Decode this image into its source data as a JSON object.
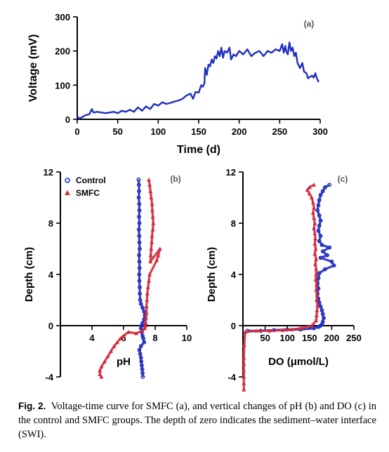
{
  "chart_data": [
    {
      "id": "a",
      "type": "line",
      "panel_label": "(a)",
      "xlabel": "Time (d)",
      "ylabel": "Voltage (mV)",
      "xlim": [
        0,
        300
      ],
      "ylim": [
        0,
        300
      ],
      "xticks": [
        0,
        50,
        100,
        150,
        200,
        250,
        300
      ],
      "yticks": [
        0,
        100,
        200,
        300
      ],
      "color": "#1f2fbf",
      "series": [
        {
          "x": [
            0,
            2,
            5,
            10,
            15,
            18,
            20,
            25,
            30,
            35,
            40,
            45,
            50,
            55,
            60,
            65,
            70,
            75,
            80,
            85,
            90,
            95,
            100,
            105,
            110,
            115,
            120,
            125,
            130,
            135,
            140,
            143,
            146,
            150,
            153,
            155,
            157,
            158,
            160,
            162,
            164,
            166,
            168,
            170,
            172,
            174,
            176,
            178,
            180,
            182,
            185,
            188,
            190,
            193,
            196,
            200,
            205,
            210,
            215,
            220,
            225,
            230,
            235,
            240,
            245,
            250,
            253,
            255,
            257,
            258,
            260,
            262,
            264,
            266,
            268,
            270,
            272,
            275,
            278,
            280,
            283,
            285,
            288,
            290,
            292,
            294,
            296,
            298
          ],
          "y": [
            10,
            2,
            5,
            12,
            15,
            30,
            20,
            22,
            20,
            18,
            20,
            22,
            18,
            25,
            22,
            28,
            22,
            35,
            25,
            38,
            30,
            45,
            40,
            50,
            45,
            48,
            52,
            55,
            60,
            70,
            75,
            60,
            80,
            78,
            100,
            95,
            105,
            150,
            130,
            160,
            155,
            175,
            165,
            185,
            178,
            200,
            185,
            210,
            180,
            200,
            195,
            210,
            175,
            190,
            185,
            200,
            190,
            205,
            185,
            195,
            200,
            185,
            200,
            195,
            205,
            200,
            220,
            195,
            215,
            200,
            190,
            225,
            200,
            210,
            185,
            195,
            165,
            150,
            165,
            140,
            135,
            120,
            125,
            128,
            122,
            135,
            120,
            110
          ]
        }
      ]
    },
    {
      "id": "b",
      "type": "scatter",
      "panel_label": "(b)",
      "xlabel": "pH",
      "ylabel": "Depth (cm)",
      "xlim": [
        2,
        10
      ],
      "ylim": [
        -4,
        12
      ],
      "xticks": [
        4,
        6,
        8,
        10
      ],
      "yticks": [
        -4,
        0,
        4,
        8,
        12
      ],
      "legend_position": "top-left",
      "series": [
        {
          "name": "Control",
          "color": "#1f2fbf",
          "marker": "circle",
          "x": [
            6.95,
            6.97,
            6.98,
            6.96,
            6.99,
            7.0,
            6.98,
            7.0,
            6.97,
            6.99,
            7.0,
            7.02,
            6.98,
            7.0,
            7.01,
            6.99,
            7.0,
            7.02,
            7.03,
            7.05,
            7.1,
            7.2,
            7.3,
            7.35,
            7.3,
            7.2,
            7.15,
            7.1,
            7.15,
            7.2,
            7.25,
            7.3,
            7.1,
            7.0,
            7.05,
            7.1,
            7.12,
            7.15,
            7.18,
            7.2,
            7.22
          ],
          "y": [
            11.4,
            11.0,
            10.5,
            10.0,
            9.5,
            9.0,
            8.5,
            8.0,
            7.5,
            7.0,
            6.5,
            6.0,
            5.5,
            5.0,
            4.5,
            4.0,
            3.5,
            3.0,
            2.5,
            2.0,
            1.7,
            1.4,
            1.1,
            0.8,
            0.5,
            0.2,
            0.0,
            -0.2,
            -0.5,
            -0.8,
            -1.0,
            -1.3,
            -1.6,
            -1.9,
            -2.2,
            -2.5,
            -2.8,
            -3.1,
            -3.4,
            -3.7,
            -4.0
          ]
        },
        {
          "name": "SMFC",
          "color": "#d42a3a",
          "marker": "triangle",
          "x": [
            7.6,
            7.65,
            7.7,
            7.75,
            7.8,
            7.82,
            7.85,
            7.88,
            7.85,
            7.8,
            7.78,
            7.75,
            7.72,
            7.7,
            8.3,
            8.2,
            8.1,
            7.65,
            7.6,
            7.55,
            7.5,
            7.48,
            7.45,
            7.45,
            7.42,
            7.4,
            7.38,
            7.35,
            7.2,
            6.8,
            6.3,
            6.0,
            5.8,
            5.6,
            5.4,
            5.2,
            5.0,
            4.8,
            4.6,
            4.5,
            4.5,
            4.6
          ],
          "y": [
            11.4,
            11.0,
            10.5,
            10.0,
            9.5,
            9.0,
            8.5,
            8.0,
            7.5,
            7.0,
            6.5,
            6.0,
            5.5,
            5.0,
            6.0,
            5.5,
            5.1,
            4.0,
            3.5,
            3.0,
            2.5,
            2.0,
            1.5,
            1.0,
            0.6,
            0.2,
            0.0,
            -0.2,
            -0.4,
            -0.6,
            -0.5,
            -0.8,
            -1.0,
            -1.3,
            -1.6,
            -2.0,
            -2.4,
            -2.8,
            -3.2,
            -3.5,
            -3.8,
            -4.0
          ]
        }
      ]
    },
    {
      "id": "c",
      "type": "scatter",
      "panel_label": "(c)",
      "xlabel": "DO (μmol/L)",
      "ylabel": "Depth (cm)",
      "xlim": [
        0,
        250
      ],
      "ylim": [
        -4,
        12
      ],
      "xticks": [
        50,
        100,
        150,
        200,
        250
      ],
      "yticks": [
        -4,
        0,
        4,
        8,
        12
      ],
      "series": [
        {
          "name": "Control",
          "color": "#1f2fbf",
          "marker": "circle",
          "x": [
            195,
            185,
            180,
            175,
            172,
            170,
            168,
            172,
            175,
            172,
            170,
            175,
            172,
            178,
            195,
            180,
            190,
            175,
            200,
            205,
            185,
            172,
            170,
            168,
            170,
            168,
            170,
            172,
            175,
            178,
            180,
            182,
            180,
            178,
            175,
            170,
            160,
            130,
            100,
            70,
            40,
            10
          ],
          "y": [
            11.0,
            10.8,
            10.5,
            10.2,
            9.8,
            9.4,
            9.0,
            8.6,
            8.2,
            7.8,
            7.4,
            7.0,
            6.6,
            6.3,
            6.1,
            5.8,
            5.5,
            5.3,
            5.0,
            4.7,
            4.4,
            4.1,
            3.7,
            3.3,
            2.9,
            2.5,
            2.1,
            1.8,
            1.5,
            1.2,
            0.9,
            0.6,
            0.3,
            0.1,
            0.0,
            -0.1,
            -0.2,
            -0.3,
            -0.3,
            -0.35,
            -0.4,
            -0.4
          ]
        },
        {
          "name": "SMFC",
          "color": "#d42a3a",
          "marker": "triangle",
          "x": [
            160,
            150,
            145,
            150,
            155,
            158,
            160,
            158,
            160,
            162,
            160,
            162,
            163,
            162,
            164,
            162,
            165,
            163,
            165,
            165,
            164,
            166,
            165,
            167,
            166,
            168,
            167,
            166,
            165,
            155,
            130,
            110,
            90,
            60,
            30,
            5,
            3,
            2,
            2,
            2,
            2,
            2,
            2
          ],
          "y": [
            11.0,
            10.8,
            10.6,
            10.3,
            10.0,
            9.6,
            9.2,
            8.8,
            8.4,
            8.0,
            7.6,
            7.2,
            6.8,
            6.4,
            6.0,
            5.6,
            5.2,
            4.8,
            4.4,
            4.0,
            3.6,
            3.2,
            2.8,
            2.4,
            2.0,
            1.6,
            1.2,
            0.8,
            0.4,
            0.0,
            -0.2,
            -0.3,
            -0.35,
            -0.4,
            -0.4,
            -0.5,
            -1.5,
            -2.5,
            -3.0,
            -3.5,
            -4.0,
            -4.5,
            -5.0
          ]
        }
      ]
    }
  ],
  "caption": {
    "label": "Fig. 2.",
    "text": "Voltage-time curve for SMFC (a), and vertical changes of pH (b) and DO (c) in the control and SMFC groups. The depth of zero indicates the sediment–water interface (SWI)."
  }
}
